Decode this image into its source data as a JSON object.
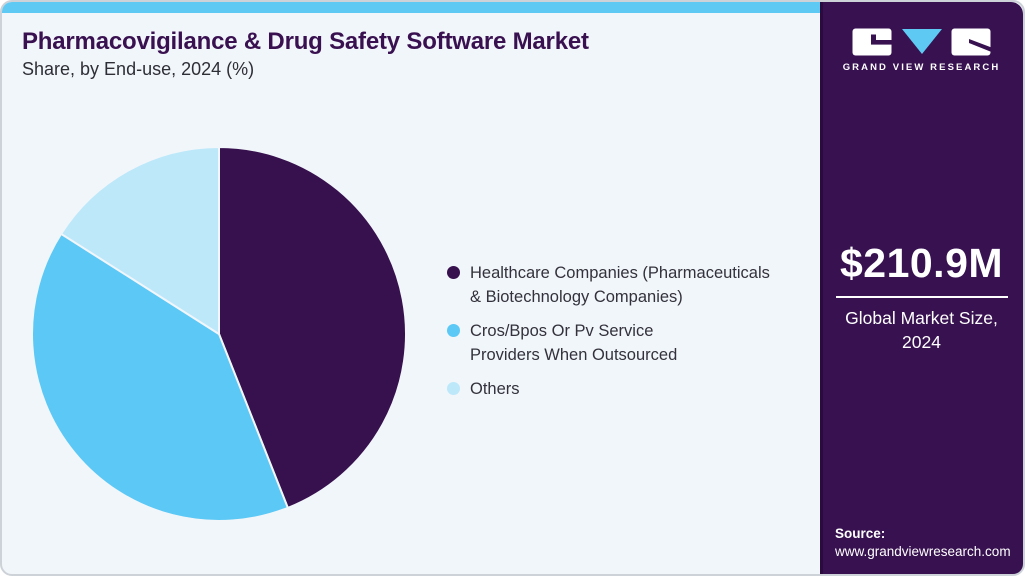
{
  "header": {
    "title": "Pharmacovigilance & Drug Safety Software Market",
    "subtitle": "Share, by End-use, 2024 (%)"
  },
  "chart_data": {
    "type": "pie",
    "title": "Pharmacovigilance & Drug Safety Software Market Share, by End-use, 2024 (%)",
    "unit": "%",
    "start_angle_deg": 0,
    "direction": "clockwise",
    "labels_shown": false,
    "legend_position": "right",
    "segments": [
      {
        "label": "Healthcare Companies (Pharmaceuticals & Biotechnology Companies)",
        "value": 44,
        "color": "#37104e"
      },
      {
        "label": "Cros/Bpos Or Pv Service Providers When Outsourced",
        "value": 40,
        "color": "#5cc8f5"
      },
      {
        "label": "Others",
        "value": 16,
        "color": "#bde8fa"
      }
    ]
  },
  "legend": {
    "items": [
      {
        "color": "#37104e",
        "lines": [
          "Healthcare Companies (Pharmaceuticals",
          "& Biotechnology Companies)"
        ]
      },
      {
        "color": "#5cc8f5",
        "lines": [
          "Cros/Bpos Or Pv Service",
          "Providers When Outsourced"
        ]
      },
      {
        "color": "#bde8fa",
        "lines": [
          "Others"
        ]
      }
    ]
  },
  "sidebar": {
    "logo_text": "GRAND VIEW RESEARCH",
    "market_size": {
      "value": "$210.9M",
      "label_line1": "Global Market Size,",
      "label_line2": "2024"
    },
    "source": {
      "label": "Source:",
      "url": "www.grandviewresearch.com"
    }
  },
  "colors": {
    "background": "#f1f6fa",
    "card_border": "#ccd2d8",
    "top_strip": "#5ec9f3",
    "sidebar_bg": "#371150",
    "title_text": "#3a1150",
    "body_text": "#33323c",
    "slice_gap_stroke": "#f1f6fa",
    "logo_triangle": "#5ec9f3"
  }
}
